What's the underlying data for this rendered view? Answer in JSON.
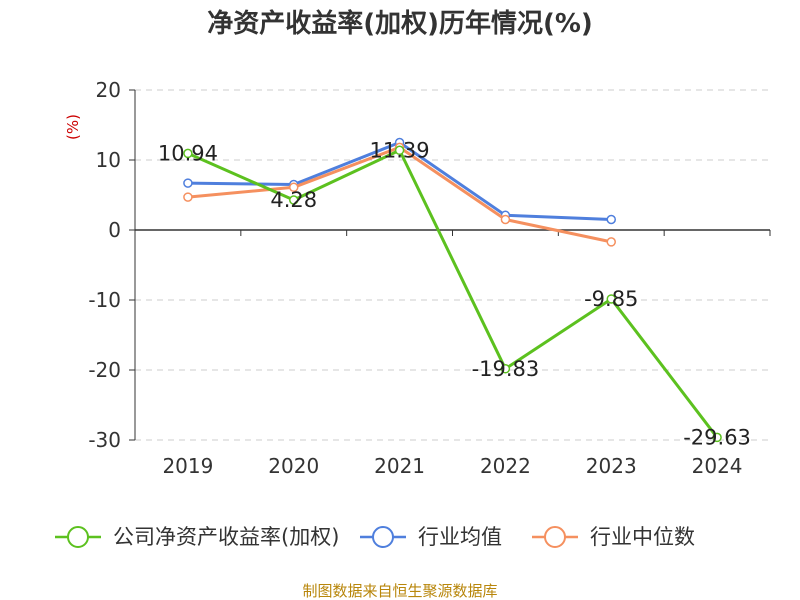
{
  "chart_data": {
    "type": "line",
    "title": "净资产收益率(加权)历年情况(%)",
    "ylabel": "(%)",
    "xlabel": "",
    "categories": [
      "2019",
      "2020",
      "2021",
      "2022",
      "2023",
      "2024"
    ],
    "ylim": [
      -30,
      20
    ],
    "yticks": [
      20,
      10,
      0,
      -10,
      -20,
      -30
    ],
    "grid": true,
    "legend_position": "bottom",
    "series": [
      {
        "name": "公司净资产收益率(加权)",
        "color": "#5cc11f",
        "values": [
          10.94,
          4.28,
          11.39,
          -19.83,
          -9.85,
          -29.63
        ],
        "labels": [
          "10.94",
          "4.28",
          "11.39",
          "-19.83",
          "-9.85",
          "-29.63"
        ]
      },
      {
        "name": "行业均值",
        "color": "#4f7fdd",
        "values": [
          6.7,
          6.5,
          12.5,
          2.1,
          1.5,
          null
        ]
      },
      {
        "name": "行业中位数",
        "color": "#f5905f",
        "values": [
          4.7,
          6.1,
          11.8,
          1.5,
          -1.7,
          null
        ]
      }
    ],
    "source": "制图数据来自恒生聚源数据库"
  }
}
